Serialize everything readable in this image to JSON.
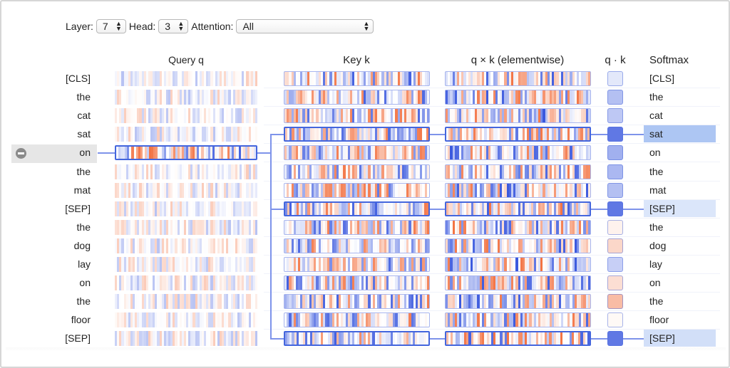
{
  "controls": {
    "layer_label": "Layer:",
    "layer_value": "7",
    "head_label": "Head:",
    "head_value": "3",
    "attention_label": "Attention:",
    "attention_value": "All"
  },
  "headers": {
    "query": "Query q",
    "key": "Key k",
    "elementwise": "q × k (elementwise)",
    "dot": "q · k",
    "softmax": "Softmax"
  },
  "tokens": [
    "[CLS]",
    "the",
    "cat",
    "sat",
    "on",
    "the",
    "mat",
    "[SEP]",
    "the",
    "dog",
    "lay",
    "on",
    "the",
    "floor",
    "[SEP]"
  ],
  "selected_query_index": 4,
  "selected_query_token": "on",
  "highlighted_key_indices": [
    3,
    7,
    14
  ],
  "qk_scores": [
    0.15,
    0.4,
    0.35,
    0.85,
    0.5,
    0.45,
    0.4,
    0.85,
    -0.1,
    -0.3,
    0.3,
    -0.25,
    -0.5,
    -0.05,
    0.85
  ],
  "softmax_weights": [
    0.0,
    0.0,
    0.0,
    0.45,
    0.0,
    0.0,
    0.0,
    0.2,
    0.0,
    0.0,
    0.0,
    0.0,
    0.0,
    0.0,
    0.25
  ],
  "colors": {
    "positive": "#2f4fdc",
    "negative": "#f26b38",
    "selection": "#4466dd",
    "softmax_highlight": "#9fbdf0",
    "active_row_bg": "#e6e6e6"
  },
  "icons": {
    "deselect": "minus-circle-icon",
    "select_arrows": "up-down-arrows-icon"
  }
}
